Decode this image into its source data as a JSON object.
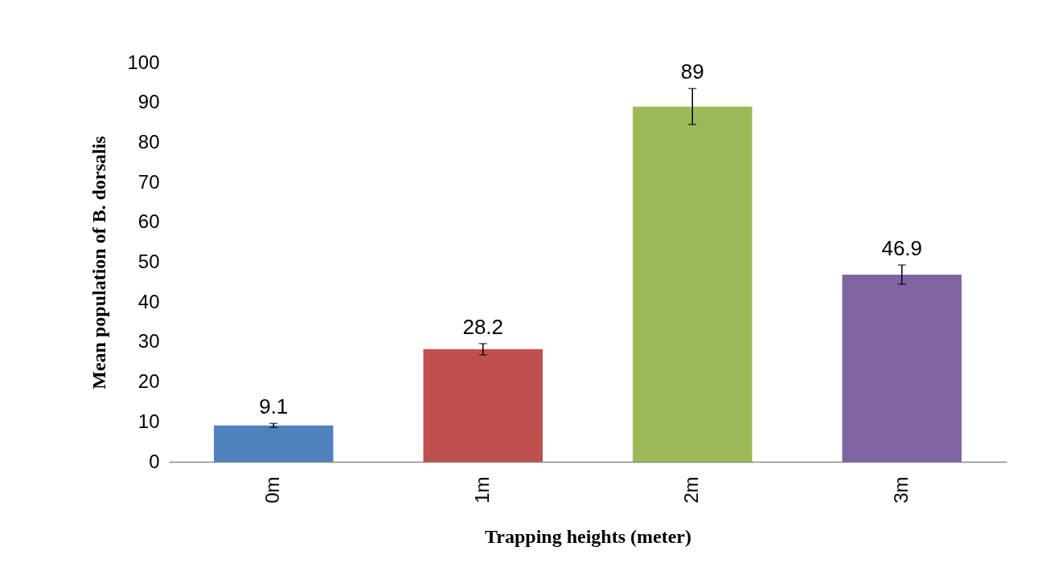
{
  "chart_data": {
    "type": "bar",
    "xlabel": "Trapping heights (meter)",
    "ylabel": "Mean population of B. dorsalis",
    "categories": [
      "0m",
      "1m",
      "2m",
      "3m"
    ],
    "values": [
      9.1,
      28.2,
      89,
      46.9
    ],
    "colors": [
      "#4f81bd",
      "#c0504d",
      "#9bbb59",
      "#8064a2"
    ],
    "errors": [
      0.5,
      1.4,
      4.5,
      2.4
    ],
    "ylim": [
      0,
      100
    ],
    "yticks": [
      0,
      10,
      20,
      30,
      40,
      50,
      60,
      70,
      80,
      90,
      100
    ],
    "data_labels": true,
    "grid": false,
    "legend": false
  }
}
